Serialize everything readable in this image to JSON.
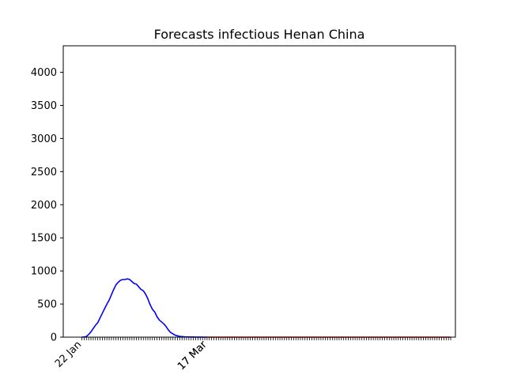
{
  "chart_data": {
    "type": "line",
    "title": "Forecasts infectious Henan China",
    "xlabel": "",
    "ylabel": "",
    "ylim": [
      0,
      4400
    ],
    "x_range_days": [
      0,
      162
    ],
    "y_ticks": [
      0,
      500,
      1000,
      1500,
      2000,
      2500,
      3000,
      3500,
      4000
    ],
    "x_tick_labels": [
      {
        "day": 0,
        "label": "22 Jan"
      },
      {
        "day": 55,
        "label": "17 Mar"
      },
      {
        "day": 55,
        "label": "17 Mar"
      }
    ],
    "grid": false,
    "legend": "none",
    "series": [
      {
        "color": "#0000ff",
        "style": "solid",
        "points": [
          [
            0,
            0
          ],
          [
            1,
            2
          ],
          [
            2,
            10
          ],
          [
            3,
            40
          ],
          [
            4,
            80
          ],
          [
            5,
            130
          ],
          [
            6,
            180
          ],
          [
            7,
            220
          ],
          [
            8,
            290
          ],
          [
            9,
            360
          ],
          [
            10,
            430
          ],
          [
            11,
            500
          ],
          [
            12,
            560
          ],
          [
            13,
            640
          ],
          [
            14,
            720
          ],
          [
            15,
            790
          ],
          [
            16,
            830
          ],
          [
            17,
            860
          ],
          [
            18,
            870
          ],
          [
            19,
            870
          ],
          [
            20,
            880
          ],
          [
            21,
            870
          ],
          [
            22,
            840
          ],
          [
            23,
            810
          ],
          [
            24,
            800
          ],
          [
            25,
            760
          ],
          [
            26,
            720
          ],
          [
            27,
            700
          ],
          [
            28,
            650
          ],
          [
            29,
            580
          ],
          [
            30,
            490
          ],
          [
            31,
            420
          ],
          [
            32,
            380
          ],
          [
            33,
            310
          ],
          [
            34,
            260
          ],
          [
            35,
            230
          ],
          [
            36,
            200
          ],
          [
            37,
            160
          ],
          [
            38,
            110
          ],
          [
            39,
            70
          ],
          [
            40,
            50
          ],
          [
            41,
            30
          ],
          [
            42,
            20
          ],
          [
            43,
            12
          ],
          [
            44,
            8
          ],
          [
            45,
            5
          ],
          [
            46,
            4
          ],
          [
            47,
            3
          ],
          [
            48,
            2
          ],
          [
            49,
            2
          ],
          [
            50,
            1
          ],
          [
            52,
            1
          ],
          [
            55,
            0
          ]
        ]
      },
      {
        "color": "#ff0000",
        "style": "solid",
        "points": [
          [
            55,
            0
          ],
          [
            162,
            0
          ]
        ]
      }
    ]
  }
}
